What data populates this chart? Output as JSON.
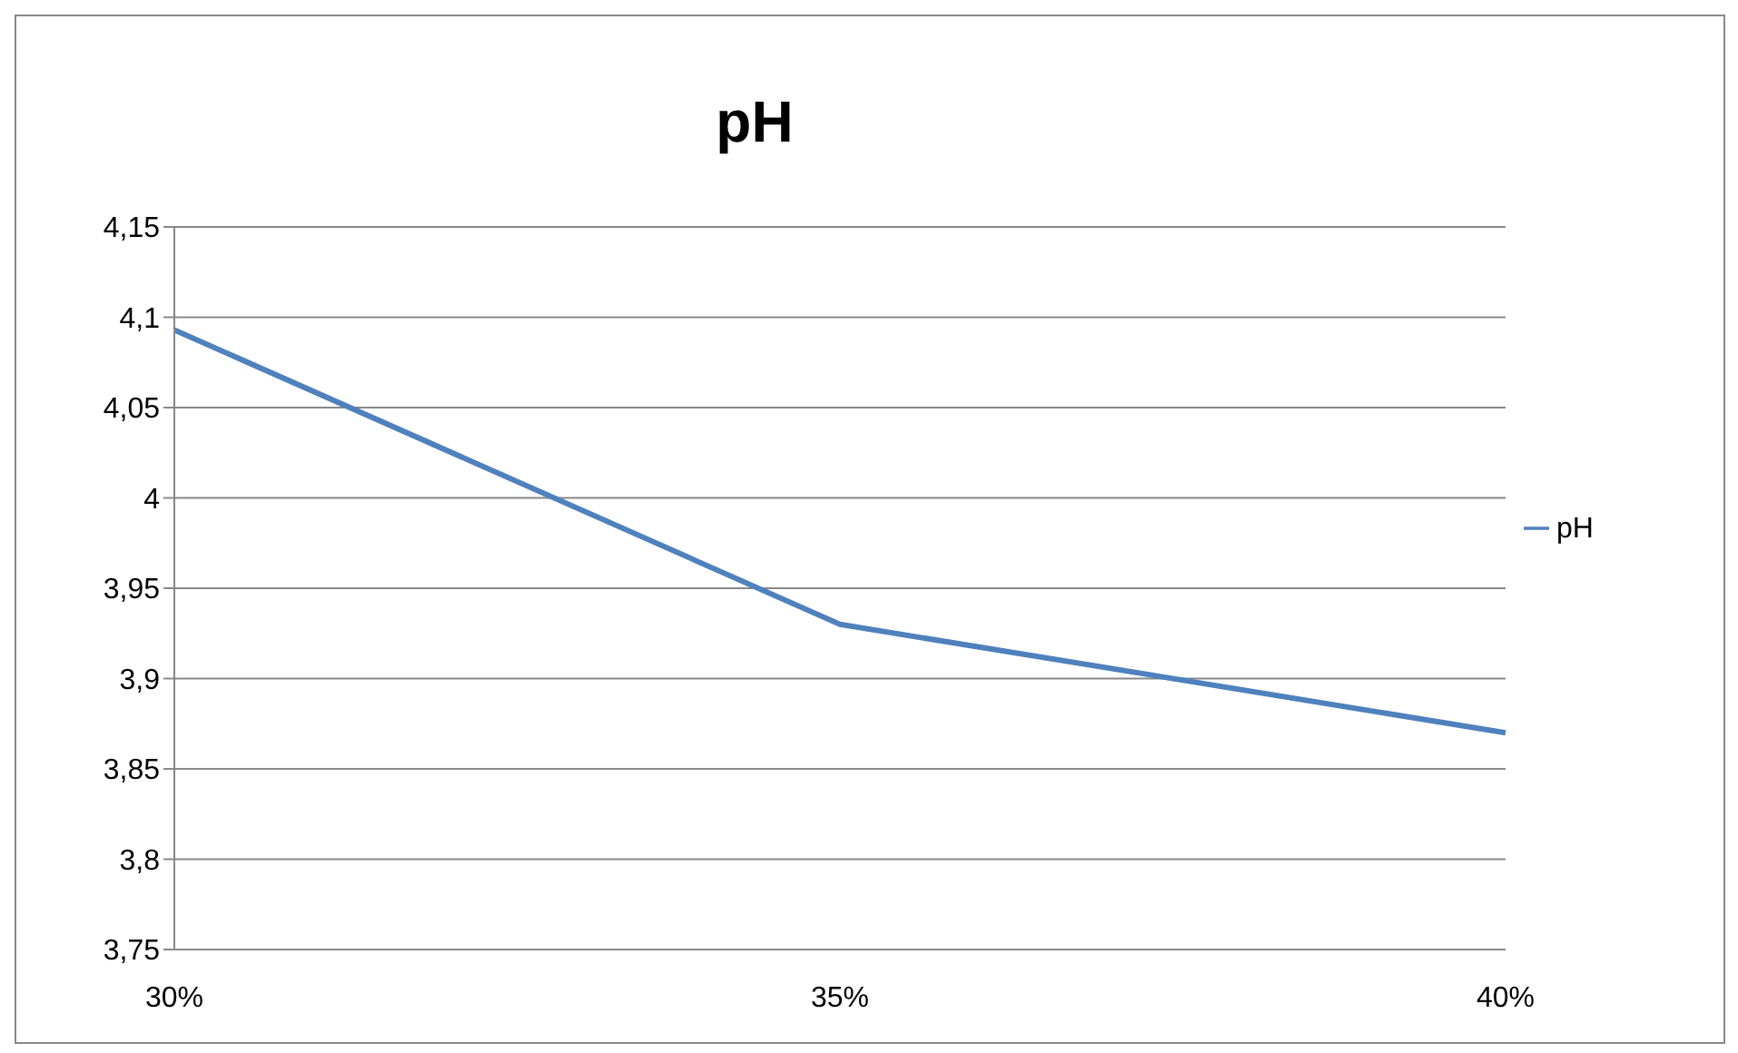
{
  "chart_data": {
    "type": "line",
    "title": "pH",
    "categories": [
      "30%",
      "35%",
      "40%"
    ],
    "series": [
      {
        "name": "pH",
        "color": "#4f81bd",
        "values": [
          4.093,
          3.93,
          3.87
        ]
      }
    ],
    "ylim": [
      3.75,
      4.15
    ],
    "yticks": [
      {
        "value": 3.75,
        "label": "3,75"
      },
      {
        "value": 3.8,
        "label": "3,8"
      },
      {
        "value": 3.85,
        "label": "3,85"
      },
      {
        "value": 3.9,
        "label": "3,9"
      },
      {
        "value": 3.95,
        "label": "3,95"
      },
      {
        "value": 4,
        "label": "4"
      },
      {
        "value": 4.05,
        "label": "4,05"
      },
      {
        "value": 4.1,
        "label": "4,1"
      },
      {
        "value": 4.15,
        "label": "4,15"
      }
    ],
    "grid": "y",
    "legend": "right",
    "marker": "none",
    "line_style": "solid"
  }
}
